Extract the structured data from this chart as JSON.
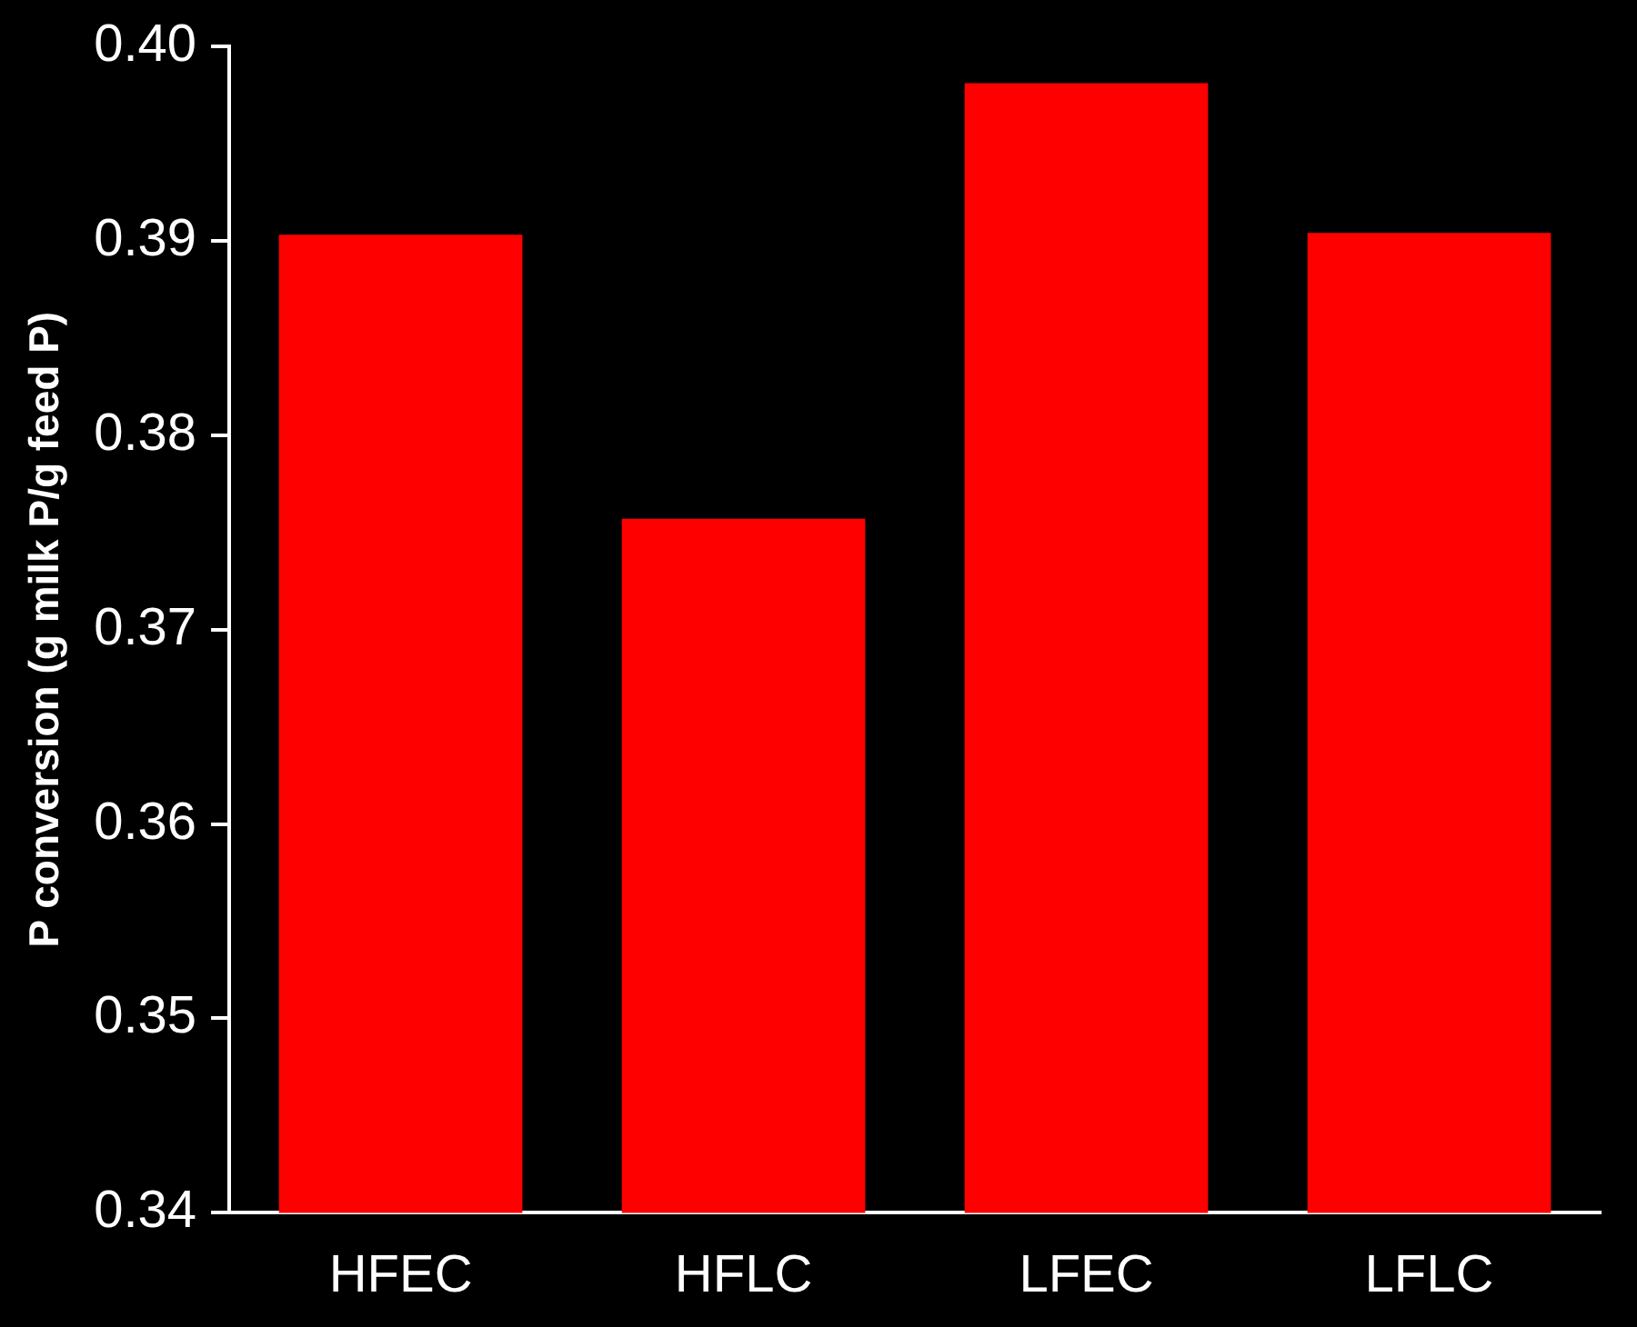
{
  "chart_data": {
    "type": "bar",
    "ylabel": "P conversion (g milk P/g feed P)",
    "categories": [
      "HFEC",
      "HFLC",
      "LFEC",
      "LFLC"
    ],
    "values": [
      0.3903,
      0.3757,
      0.3981,
      0.3904
    ],
    "color": "#ff0000",
    "ylim": [
      0.34,
      0.4
    ],
    "yticks": [
      {
        "value": 0.34,
        "label": "0.34"
      },
      {
        "value": 0.35,
        "label": "0.35"
      },
      {
        "value": 0.36,
        "label": "0.36"
      },
      {
        "value": 0.37,
        "label": "0.37"
      },
      {
        "value": 0.38,
        "label": "0.38"
      },
      {
        "value": 0.39,
        "label": "0.39"
      },
      {
        "value": 0.4,
        "label": "0.40"
      }
    ]
  }
}
